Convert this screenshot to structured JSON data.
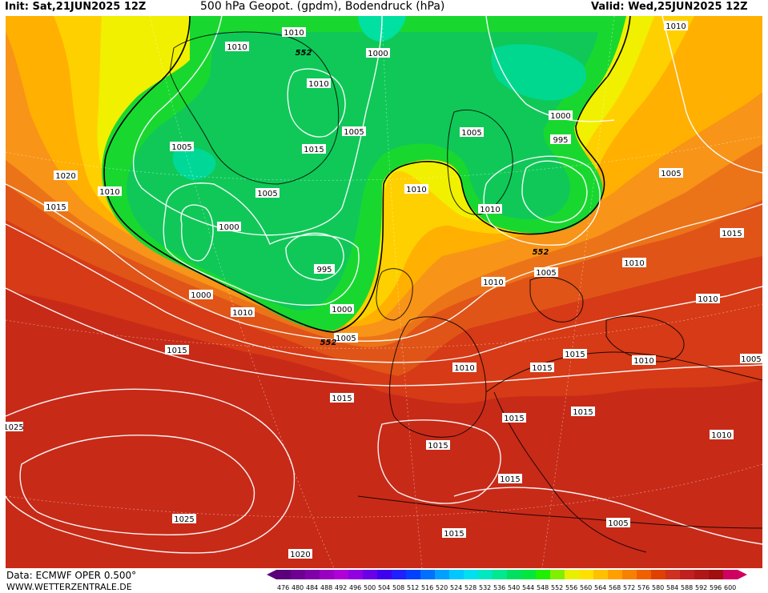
{
  "header": {
    "init": "Init: Sat,21JUN2025 12Z",
    "title": "500 hPa Geopot. (gpdm), Bodendruck (hPa)",
    "valid": "Valid: Wed,25JUN2025 12Z"
  },
  "footer": {
    "data_source": "Data: ECMWF OPER 0.500°",
    "website": "WWW.WETTERZENTRALE.DE"
  },
  "legend": {
    "values": [
      "476",
      "480",
      "484",
      "488",
      "492",
      "496",
      "500",
      "504",
      "508",
      "512",
      "516",
      "520",
      "524",
      "528",
      "532",
      "536",
      "540",
      "544",
      "548",
      "552",
      "556",
      "560",
      "564",
      "568",
      "572",
      "576",
      "580",
      "584",
      "588",
      "592",
      "596",
      "600"
    ],
    "colors": [
      "#5a007a",
      "#6d0090",
      "#8000a8",
      "#9a00c0",
      "#b000d8",
      "#9000e0",
      "#6a00e8",
      "#4000f0",
      "#2020ff",
      "#0040ff",
      "#0070ff",
      "#00a0ff",
      "#00c8ff",
      "#00e0f0",
      "#00e8c0",
      "#00e890",
      "#00e060",
      "#00e840",
      "#20f000",
      "#80f000",
      "#e8f000",
      "#ffe000",
      "#ffc000",
      "#ffa000",
      "#f88000",
      "#f06000",
      "#e04000",
      "#d03020",
      "#c02020",
      "#b01818",
      "#a01010",
      "#d00060"
    ]
  },
  "pressure_labels": [
    {
      "text": "1010"
    },
    {
      "text": "1010"
    },
    {
      "text": "1000"
    },
    {
      "text": "1010"
    },
    {
      "text": "1005"
    },
    {
      "text": "1015"
    },
    {
      "text": "1005"
    },
    {
      "text": "1010"
    },
    {
      "text": "1020"
    },
    {
      "text": "1010"
    },
    {
      "text": "1015"
    },
    {
      "text": "1005"
    },
    {
      "text": "1000"
    },
    {
      "text": "995"
    },
    {
      "text": "1000"
    },
    {
      "text": "1010"
    },
    {
      "text": "1005"
    },
    {
      "text": "1000"
    },
    {
      "text": "995"
    },
    {
      "text": "1000"
    },
    {
      "text": "1005"
    },
    {
      "text": "1010"
    },
    {
      "text": "1005"
    },
    {
      "text": "1010"
    },
    {
      "text": "1015"
    },
    {
      "text": "1010"
    },
    {
      "text": "1005"
    },
    {
      "text": "1010"
    },
    {
      "text": "1005"
    },
    {
      "text": "1015"
    },
    {
      "text": "1015"
    },
    {
      "text": "1010"
    },
    {
      "text": "1010"
    },
    {
      "text": "1015"
    },
    {
      "text": "1015"
    },
    {
      "text": "1010"
    },
    {
      "text": "1015"
    },
    {
      "text": "1015"
    },
    {
      "text": "1015"
    },
    {
      "text": "1015"
    },
    {
      "text": "1025"
    },
    {
      "text": "1025"
    },
    {
      "text": "1020"
    },
    {
      "text": "1015"
    },
    {
      "text": "1010"
    },
    {
      "text": "1005"
    },
    {
      "text": "1015"
    }
  ],
  "contour_552_labels": [
    {
      "text": "552"
    },
    {
      "text": "552"
    },
    {
      "text": "552"
    }
  ]
}
